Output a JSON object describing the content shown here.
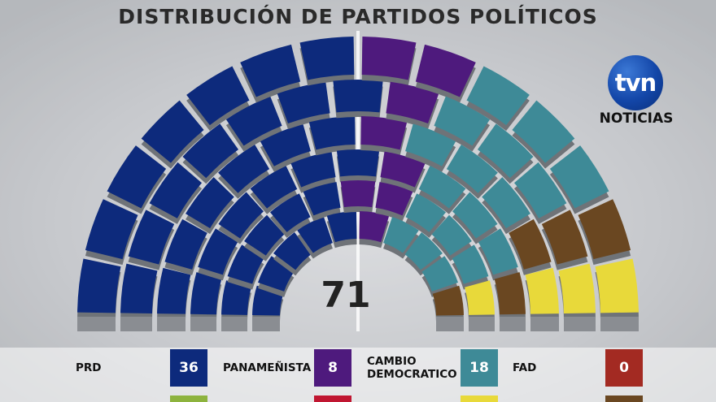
{
  "title": "DISTRIBUCIÓN DE PARTIDOS POLÍTICOS",
  "logo": {
    "mark": "tvn",
    "text": "NOTICIAS"
  },
  "chart_data": {
    "type": "parliament",
    "total": "71",
    "series": [
      {
        "name": "PRD",
        "value": 36,
        "color": "#0d2a7c"
      },
      {
        "name": "PANAMEÑISTA",
        "value": 8,
        "color": "#4e1a7d"
      },
      {
        "name": "CAMBIO\nDEMOCRATICO",
        "value": 18,
        "color": "#3e8a97"
      },
      {
        "name": "FAD",
        "value": 0,
        "color": "#a32a22"
      },
      {
        "name": "",
        "value": 5,
        "color": "#6a4721"
      },
      {
        "name": "",
        "value": 4,
        "color": "#e8d93a"
      }
    ],
    "partial_row_colors": [
      "#8db33e",
      "#c01631",
      "#e8d93a",
      "#6a4721"
    ]
  },
  "legend": [
    {
      "name": "PRD",
      "count": "36",
      "color": "#0d2a7c"
    },
    {
      "name": "PANAMEÑISTA",
      "count": "8",
      "color": "#4e1a7d"
    },
    {
      "name": "CAMBIO\nDEMOCRATICO",
      "count": "18",
      "color": "#3e8a97"
    },
    {
      "name": "FAD",
      "count": "0",
      "color": "#a32a22"
    }
  ]
}
